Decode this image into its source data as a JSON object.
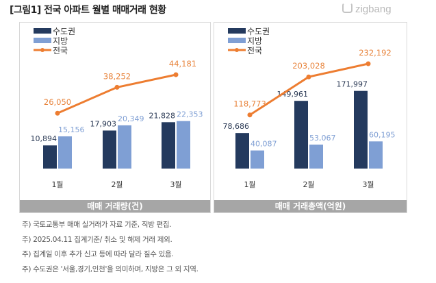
{
  "title": "[그림1] 전국 아파트 월별 매매거래 현황",
  "logo": "zigbang",
  "colors": {
    "capital": "#243a5e",
    "regional": "#7f9fd4",
    "national": "#ed7d31",
    "national_label": "#e8843c"
  },
  "chart_data": [
    {
      "type": "bar",
      "title": "매매 거래량(건)",
      "categories": [
        "1월",
        "2월",
        "3월"
      ],
      "series": [
        {
          "name": "수도권",
          "type": "bar",
          "values": [
            10894,
            17903,
            21828
          ]
        },
        {
          "name": "지방",
          "type": "bar",
          "values": [
            15156,
            20349,
            22353
          ]
        },
        {
          "name": "전국",
          "type": "line",
          "values": [
            26050,
            38252,
            44181
          ]
        }
      ],
      "legend": "top-left",
      "grid": false
    },
    {
      "type": "bar",
      "title": "매매 거래총액(억원)",
      "categories": [
        "1월",
        "2월",
        "3월"
      ],
      "series": [
        {
          "name": "수도권",
          "type": "bar",
          "values": [
            78686,
            149961,
            171997
          ]
        },
        {
          "name": "지방",
          "type": "bar",
          "values": [
            40087,
            53067,
            60195
          ]
        },
        {
          "name": "전국",
          "type": "line",
          "values": [
            118773,
            203028,
            232192
          ]
        }
      ],
      "legend": "top-left",
      "grid": false
    }
  ],
  "notes": [
    "주) 국토교통부 매매 실거래가 자료 기준, 직방 편집.",
    "주) 2025.04.11 집계기준/ 취소 및 해제 거래 제외.",
    "주) 집계일 이후 추가 신고 등에 따라 달라 질수 있음.",
    "주) 수도권은 '서울,경기,인천'을 의미하며, 지방은 그 외 지역."
  ]
}
